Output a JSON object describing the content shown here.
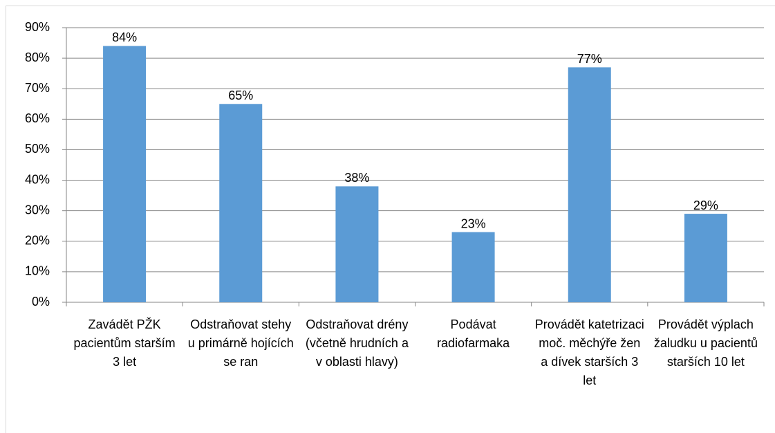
{
  "chart_data": {
    "type": "bar",
    "categories": [
      "Zavádět PŽK pacientům starším 3 let",
      "Odstraňovat stehy u primárně hojících se ran",
      "Odstraňovat drény (včetně hrudních a v oblasti hlavy)",
      "Podávat radiofarmaka",
      "Provádět katetrizaci moč. měchýře žen a dívek starších 3 let",
      "Provádět výplach žaludku u pacientů starších 10 let"
    ],
    "values": [
      84,
      65,
      38,
      23,
      77,
      29
    ],
    "value_labels": [
      "84%",
      "65%",
      "38%",
      "23%",
      "77%",
      "29%"
    ],
    "color": "#5b9bd5",
    "ylim": [
      0,
      90
    ],
    "yticks": [
      {
        "value": 0,
        "label": "0%"
      },
      {
        "value": 10,
        "label": "10%"
      },
      {
        "value": 20,
        "label": "20%"
      },
      {
        "value": 30,
        "label": "30%"
      },
      {
        "value": 40,
        "label": "40%"
      },
      {
        "value": 50,
        "label": "50%"
      },
      {
        "value": 60,
        "label": "60%"
      },
      {
        "value": 70,
        "label": "70%"
      },
      {
        "value": 80,
        "label": "80%"
      },
      {
        "value": 90,
        "label": "90%"
      }
    ],
    "grid": true
  }
}
